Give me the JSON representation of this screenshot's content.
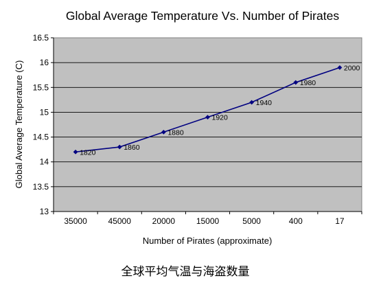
{
  "chart_data": {
    "type": "line",
    "title": "Global Average Temperature Vs. Number of Pirates",
    "xlabel": "Number of Pirates (approximate)",
    "ylabel": "Global Average Temperature (C)",
    "categories": [
      "35000",
      "45000",
      "20000",
      "15000",
      "5000",
      "400",
      "17"
    ],
    "series": [
      {
        "values": [
          14.2,
          14.3,
          14.6,
          14.9,
          15.2,
          15.6,
          15.9
        ],
        "point_labels": [
          "1820",
          "1860",
          "1880",
          "1920",
          "1940",
          "1980",
          "2000"
        ]
      }
    ],
    "ylim": [
      13,
      16.5
    ],
    "yticks": [
      "13",
      "13.5",
      "14",
      "14.5",
      "15",
      "15.5",
      "16",
      "16.5"
    ],
    "grid": true,
    "legend": "none",
    "colors": {
      "plot_background": "#c0c0c0",
      "line": "#000080",
      "marker": "#000080",
      "gridline": "#000000"
    }
  },
  "caption": "全球平均气温与海盗数量"
}
